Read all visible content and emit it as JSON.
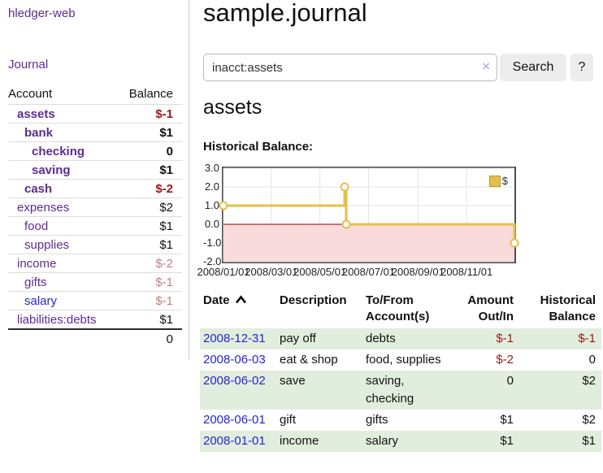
{
  "sidebar": {
    "app_title": "hledger-web",
    "journal_link": "Journal",
    "accounts": {
      "header_account": "Account",
      "header_balance": "Balance",
      "rows": [
        {
          "name": "assets",
          "balance": "$-1",
          "depth": 1,
          "bold": true,
          "balance_color": "negative"
        },
        {
          "name": "bank",
          "balance": "$1",
          "depth": 2,
          "bold": true,
          "balance_color": "normal"
        },
        {
          "name": "checking",
          "balance": "0",
          "depth": 3,
          "bold": true,
          "balance_color": "normal"
        },
        {
          "name": "saving",
          "balance": "$1",
          "depth": 3,
          "bold": true,
          "balance_color": "normal"
        },
        {
          "name": "cash",
          "balance": "$-2",
          "depth": 2,
          "bold": true,
          "balance_color": "negative"
        },
        {
          "name": "expenses",
          "balance": "$2",
          "depth": 1,
          "bold": false,
          "balance_color": "normal"
        },
        {
          "name": "food",
          "balance": "$1",
          "depth": 2,
          "bold": false,
          "balance_color": "normal"
        },
        {
          "name": "supplies",
          "balance": "$1",
          "depth": 2,
          "bold": false,
          "balance_color": "normal"
        },
        {
          "name": "income",
          "balance": "$-2",
          "depth": 1,
          "bold": false,
          "balance_color": "soft-negative"
        },
        {
          "name": "gifts",
          "balance": "$-1",
          "depth": 2,
          "bold": false,
          "balance_color": "soft-negative"
        },
        {
          "name": "salary",
          "balance": "$-1",
          "depth": 2,
          "bold": false,
          "balance_color": "soft-negative",
          "link_color": "blue"
        },
        {
          "name": "liabilities:debts",
          "balance": "$1",
          "depth": 1,
          "bold": false,
          "balance_color": "normal"
        }
      ],
      "total": "0"
    }
  },
  "main": {
    "title": "sample.journal",
    "search": {
      "value": "inacct:assets",
      "clear_icon": "×",
      "button_label": "Search",
      "help_label": "?"
    },
    "account_heading": "assets"
  },
  "chart_data": {
    "type": "line",
    "step": true,
    "title": "Historical Balance:",
    "x_range": [
      "2008-01-01",
      "2008-12-31"
    ],
    "ylim": [
      -2,
      3
    ],
    "y_ticks": [
      "3.0",
      "2.0",
      "1.0",
      "0.0",
      "-1.0",
      "-2.0"
    ],
    "x_ticks": [
      {
        "label": "2008/01/01",
        "date": "2008-01-01"
      },
      {
        "label": "2008/03/01",
        "date": "2008-03-01"
      },
      {
        "label": "2008/05/01",
        "date": "2008-05-01"
      },
      {
        "label": "2008/07/01",
        "date": "2008-07-01"
      },
      {
        "label": "2008/09/01",
        "date": "2008-09-01"
      },
      {
        "label": "2008/11/01",
        "date": "2008-11-01"
      }
    ],
    "series": [
      {
        "name": "$",
        "color": "#e4c04b",
        "marker_fill": "#ffffff",
        "points": [
          {
            "date": "2008-01-01",
            "value": 1
          },
          {
            "date": "2008-06-01",
            "value": 2
          },
          {
            "date": "2008-06-03",
            "value": 0
          },
          {
            "date": "2008-12-31",
            "value": -1
          }
        ]
      }
    ],
    "legend": {
      "label": "$",
      "position": "top-right"
    },
    "grid": true,
    "gridline_color": "#e3e3e3",
    "negative_fill": "#fadada",
    "zero_line_color": "#8b0000"
  },
  "register": {
    "columns": [
      {
        "lines": [
          "Date"
        ],
        "sorted": "asc"
      },
      {
        "lines": [
          "Description"
        ]
      },
      {
        "lines": [
          "To/From",
          "Account(s)"
        ]
      },
      {
        "lines": [
          "Amount",
          "Out/In"
        ]
      },
      {
        "lines": [
          "Historical",
          "Balance"
        ]
      }
    ],
    "rows": [
      {
        "date": "2008-12-31",
        "description": "pay off",
        "accounts": "debts",
        "amount": "$-1",
        "balance": "$-1",
        "amount_negative": true,
        "balance_negative": true
      },
      {
        "date": "2008-06-03",
        "description": "eat & shop",
        "accounts": "food, supplies",
        "amount": "$-2",
        "balance": "0",
        "amount_negative": true,
        "balance_negative": false
      },
      {
        "date": "2008-06-02",
        "description": "save",
        "accounts": "saving, checking",
        "amount": "0",
        "balance": "$2",
        "amount_negative": false,
        "balance_negative": false
      },
      {
        "date": "2008-06-01",
        "description": "gift",
        "accounts": "gifts",
        "amount": "$1",
        "balance": "$2",
        "amount_negative": false,
        "balance_negative": false
      },
      {
        "date": "2008-01-01",
        "description": "income",
        "accounts": "salary",
        "amount": "$1",
        "balance": "$1",
        "amount_negative": false,
        "balance_negative": false
      }
    ]
  },
  "colors": {
    "link_purple": "#5c2d91",
    "link_blue": "#2525d2",
    "negative": "#9e1616",
    "soft_negative": "#c17f7f",
    "text": "#111111",
    "row_green": "#e2eedd"
  }
}
